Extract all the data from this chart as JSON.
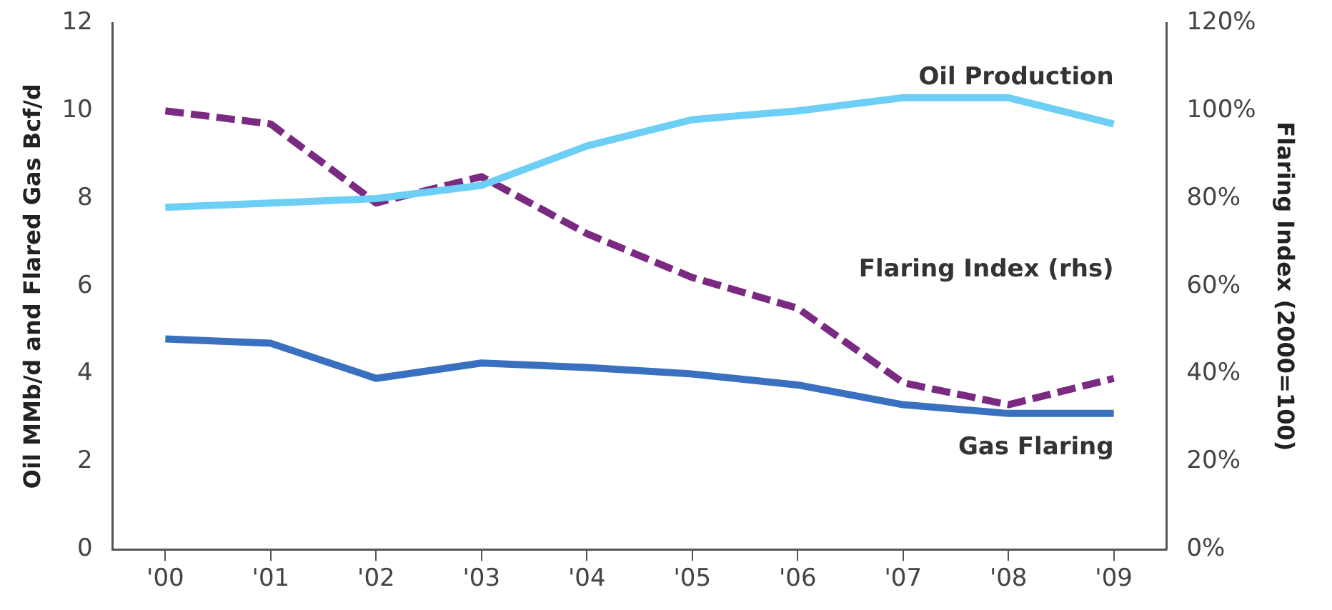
{
  "chart_data": {
    "type": "line",
    "ylabel": "Oil MMb/d and Flared Gas Bcf/d",
    "y2label": "Flaring Index (2000=100)",
    "categories": [
      "'00",
      "'01",
      "'02",
      "'03",
      "'04",
      "'05",
      "'06",
      "'07",
      "'08",
      "'09"
    ],
    "series": [
      {
        "name": "Oil Production",
        "color": "#6dcff6",
        "values": [
          7.8,
          7.9,
          8.0,
          8.3,
          9.2,
          9.8,
          10.0,
          10.3,
          10.3,
          9.7
        ]
      },
      {
        "name": "Flaring Index (rhs)",
        "color": "#7b2a82",
        "axis": "y2",
        "line_style": "dashed",
        "values": [
          100,
          97,
          79,
          85,
          72,
          62,
          55,
          38,
          33,
          39
        ]
      },
      {
        "name": "Gas Flaring",
        "color": "#3a70c0",
        "values": [
          4.8,
          4.7,
          3.9,
          4.25,
          4.15,
          4.0,
          3.75,
          3.3,
          3.1,
          3.1
        ]
      }
    ],
    "ylim": [
      0,
      12
    ],
    "yticks": [
      0,
      2,
      4,
      6,
      8,
      10,
      12
    ],
    "y2lim": [
      0,
      120
    ],
    "y2ticks": [
      {
        "value": 0,
        "label": "0%"
      },
      {
        "value": 20,
        "label": "20%"
      },
      {
        "value": 40,
        "label": "40%"
      },
      {
        "value": 60,
        "label": "60%"
      },
      {
        "value": 80,
        "label": "80%"
      },
      {
        "value": 100,
        "label": "100%"
      },
      {
        "value": 120,
        "label": "120%"
      }
    ],
    "grid": false,
    "legend": false,
    "marker": "none",
    "line_style": "solid"
  }
}
